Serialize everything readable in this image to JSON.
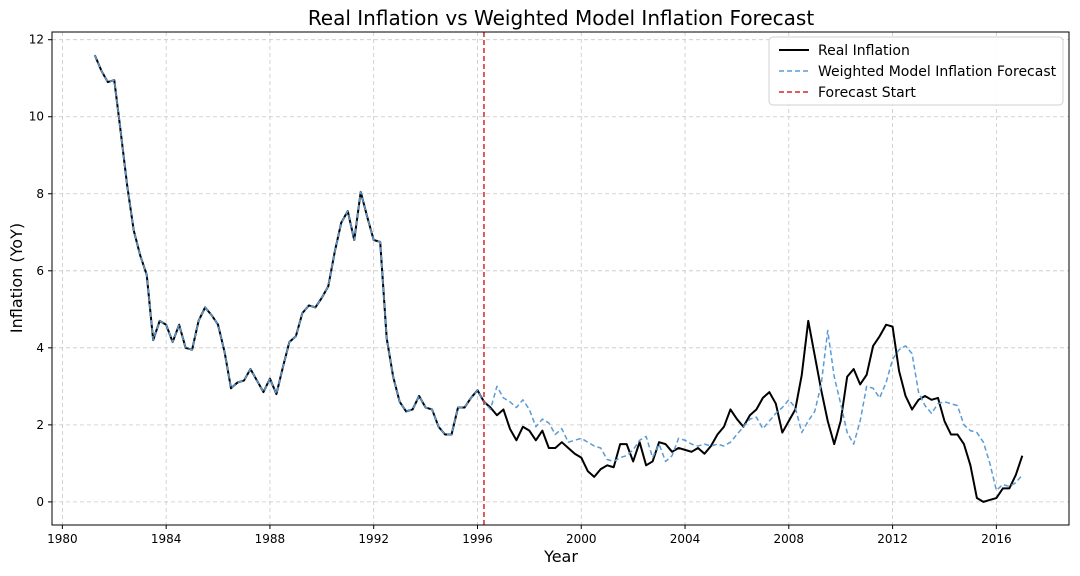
{
  "chart_data": {
    "type": "line",
    "title": "Real Inflation vs Weighted Model Inflation Forecast",
    "xlabel": "Year",
    "ylabel": "Inflation (YoY)",
    "xlim": [
      1979.6,
      2018.8
    ],
    "ylim": [
      -0.6,
      12.2
    ],
    "x_ticks": [
      1980,
      1984,
      1988,
      1992,
      1996,
      2000,
      2004,
      2008,
      2012,
      2016
    ],
    "y_ticks": [
      0,
      2,
      4,
      6,
      8,
      10,
      12
    ],
    "grid": true,
    "legend_position": "top-right",
    "forecast_start": {
      "label": "Forecast Start",
      "x": 1996.25,
      "color": "#d62728"
    },
    "series": [
      {
        "name": "Real Inflation",
        "color": "#000000",
        "style": "solid",
        "points": [
          [
            1981.25,
            11.6
          ],
          [
            1981.5,
            11.2
          ],
          [
            1981.75,
            10.9
          ],
          [
            1982.0,
            10.95
          ],
          [
            1982.25,
            9.6
          ],
          [
            1982.5,
            8.2
          ],
          [
            1982.75,
            7.05
          ],
          [
            1983.0,
            6.4
          ],
          [
            1983.25,
            5.9
          ],
          [
            1983.5,
            4.2
          ],
          [
            1983.75,
            4.7
          ],
          [
            1984.0,
            4.6
          ],
          [
            1984.25,
            4.15
          ],
          [
            1984.5,
            4.6
          ],
          [
            1984.75,
            4.0
          ],
          [
            1985.0,
            3.95
          ],
          [
            1985.25,
            4.7
          ],
          [
            1985.5,
            5.05
          ],
          [
            1985.75,
            4.85
          ],
          [
            1986.0,
            4.6
          ],
          [
            1986.25,
            3.9
          ],
          [
            1986.5,
            2.95
          ],
          [
            1986.75,
            3.1
          ],
          [
            1987.0,
            3.15
          ],
          [
            1987.25,
            3.45
          ],
          [
            1987.5,
            3.15
          ],
          [
            1987.75,
            2.85
          ],
          [
            1988.0,
            3.2
          ],
          [
            1988.25,
            2.8
          ],
          [
            1988.5,
            3.5
          ],
          [
            1988.75,
            4.15
          ],
          [
            1989.0,
            4.3
          ],
          [
            1989.25,
            4.9
          ],
          [
            1989.5,
            5.1
          ],
          [
            1989.75,
            5.05
          ],
          [
            1990.0,
            5.3
          ],
          [
            1990.25,
            5.6
          ],
          [
            1990.5,
            6.5
          ],
          [
            1990.75,
            7.25
          ],
          [
            1991.0,
            7.55
          ],
          [
            1991.25,
            6.8
          ],
          [
            1991.5,
            8.05
          ],
          [
            1991.75,
            7.4
          ],
          [
            1992.0,
            6.8
          ],
          [
            1992.25,
            6.75
          ],
          [
            1992.5,
            4.25
          ],
          [
            1992.75,
            3.25
          ],
          [
            1993.0,
            2.6
          ],
          [
            1993.25,
            2.35
          ],
          [
            1993.5,
            2.4
          ],
          [
            1993.75,
            2.75
          ],
          [
            1994.0,
            2.45
          ],
          [
            1994.25,
            2.4
          ],
          [
            1994.5,
            1.95
          ],
          [
            1994.75,
            1.75
          ],
          [
            1995.0,
            1.75
          ],
          [
            1995.25,
            2.45
          ],
          [
            1995.5,
            2.45
          ],
          [
            1995.75,
            2.7
          ],
          [
            1996.0,
            2.9
          ],
          [
            1996.25,
            2.6
          ],
          [
            1996.5,
            2.45
          ],
          [
            1996.75,
            2.25
          ],
          [
            1997.0,
            2.4
          ],
          [
            1997.25,
            1.9
          ],
          [
            1997.5,
            1.6
          ],
          [
            1997.75,
            1.95
          ],
          [
            1998.0,
            1.85
          ],
          [
            1998.25,
            1.6
          ],
          [
            1998.5,
            1.85
          ],
          [
            1998.75,
            1.4
          ],
          [
            1999.0,
            1.4
          ],
          [
            1999.25,
            1.55
          ],
          [
            1999.5,
            1.4
          ],
          [
            1999.75,
            1.25
          ],
          [
            2000.0,
            1.15
          ],
          [
            2000.25,
            0.8
          ],
          [
            2000.5,
            0.65
          ],
          [
            2000.75,
            0.85
          ],
          [
            2001.0,
            0.95
          ],
          [
            2001.25,
            0.9
          ],
          [
            2001.5,
            1.5
          ],
          [
            2001.75,
            1.5
          ],
          [
            2002.0,
            1.05
          ],
          [
            2002.25,
            1.55
          ],
          [
            2002.5,
            0.95
          ],
          [
            2002.75,
            1.05
          ],
          [
            2003.0,
            1.55
          ],
          [
            2003.25,
            1.5
          ],
          [
            2003.5,
            1.3
          ],
          [
            2003.75,
            1.4
          ],
          [
            2004.0,
            1.35
          ],
          [
            2004.25,
            1.3
          ],
          [
            2004.5,
            1.4
          ],
          [
            2004.75,
            1.25
          ],
          [
            2005.0,
            1.45
          ],
          [
            2005.25,
            1.75
          ],
          [
            2005.5,
            1.95
          ],
          [
            2005.75,
            2.4
          ],
          [
            2006.0,
            2.15
          ],
          [
            2006.25,
            1.95
          ],
          [
            2006.5,
            2.25
          ],
          [
            2006.75,
            2.4
          ],
          [
            2007.0,
            2.7
          ],
          [
            2007.25,
            2.85
          ],
          [
            2007.5,
            2.55
          ],
          [
            2007.75,
            1.8
          ],
          [
            2008.0,
            2.1
          ],
          [
            2008.25,
            2.4
          ],
          [
            2008.5,
            3.3
          ],
          [
            2008.75,
            4.7
          ],
          [
            2009.0,
            3.8
          ],
          [
            2009.25,
            2.9
          ],
          [
            2009.5,
            2.1
          ],
          [
            2009.75,
            1.5
          ],
          [
            2010.0,
            2.1
          ],
          [
            2010.25,
            3.25
          ],
          [
            2010.5,
            3.45
          ],
          [
            2010.75,
            3.05
          ],
          [
            2011.0,
            3.3
          ],
          [
            2011.25,
            4.05
          ],
          [
            2011.5,
            4.3
          ],
          [
            2011.75,
            4.6
          ],
          [
            2012.0,
            4.55
          ],
          [
            2012.25,
            3.4
          ],
          [
            2012.5,
            2.75
          ],
          [
            2012.75,
            2.4
          ],
          [
            2013.0,
            2.65
          ],
          [
            2013.25,
            2.75
          ],
          [
            2013.5,
            2.65
          ],
          [
            2013.75,
            2.7
          ],
          [
            2014.0,
            2.1
          ],
          [
            2014.25,
            1.75
          ],
          [
            2014.5,
            1.75
          ],
          [
            2014.75,
            1.5
          ],
          [
            2015.0,
            0.95
          ],
          [
            2015.25,
            0.1
          ],
          [
            2015.5,
            0.0
          ],
          [
            2015.75,
            0.05
          ],
          [
            2016.0,
            0.1
          ],
          [
            2016.25,
            0.35
          ],
          [
            2016.5,
            0.35
          ],
          [
            2016.75,
            0.7
          ],
          [
            2017.0,
            1.2
          ]
        ]
      },
      {
        "name": "Weighted Model Inflation Forecast",
        "color": "#5b9bd5",
        "style": "dashed",
        "points": [
          [
            1981.25,
            11.6
          ],
          [
            1981.5,
            11.2
          ],
          [
            1981.75,
            10.9
          ],
          [
            1982.0,
            10.95
          ],
          [
            1982.25,
            9.6
          ],
          [
            1982.5,
            8.2
          ],
          [
            1982.75,
            7.05
          ],
          [
            1983.0,
            6.4
          ],
          [
            1983.25,
            5.9
          ],
          [
            1983.5,
            4.2
          ],
          [
            1983.75,
            4.7
          ],
          [
            1984.0,
            4.6
          ],
          [
            1984.25,
            4.15
          ],
          [
            1984.5,
            4.6
          ],
          [
            1984.75,
            4.0
          ],
          [
            1985.0,
            3.95
          ],
          [
            1985.25,
            4.7
          ],
          [
            1985.5,
            5.05
          ],
          [
            1985.75,
            4.85
          ],
          [
            1986.0,
            4.6
          ],
          [
            1986.25,
            3.9
          ],
          [
            1986.5,
            2.95
          ],
          [
            1986.75,
            3.1
          ],
          [
            1987.0,
            3.15
          ],
          [
            1987.25,
            3.45
          ],
          [
            1987.5,
            3.15
          ],
          [
            1987.75,
            2.85
          ],
          [
            1988.0,
            3.2
          ],
          [
            1988.25,
            2.8
          ],
          [
            1988.5,
            3.5
          ],
          [
            1988.75,
            4.15
          ],
          [
            1989.0,
            4.3
          ],
          [
            1989.25,
            4.9
          ],
          [
            1989.5,
            5.1
          ],
          [
            1989.75,
            5.05
          ],
          [
            1990.0,
            5.3
          ],
          [
            1990.25,
            5.6
          ],
          [
            1990.5,
            6.5
          ],
          [
            1990.75,
            7.25
          ],
          [
            1991.0,
            7.55
          ],
          [
            1991.25,
            6.8
          ],
          [
            1991.5,
            8.05
          ],
          [
            1991.75,
            7.4
          ],
          [
            1992.0,
            6.8
          ],
          [
            1992.25,
            6.75
          ],
          [
            1992.5,
            4.25
          ],
          [
            1992.75,
            3.25
          ],
          [
            1993.0,
            2.6
          ],
          [
            1993.25,
            2.35
          ],
          [
            1993.5,
            2.4
          ],
          [
            1993.75,
            2.75
          ],
          [
            1994.0,
            2.45
          ],
          [
            1994.25,
            2.4
          ],
          [
            1994.5,
            1.95
          ],
          [
            1994.75,
            1.75
          ],
          [
            1995.0,
            1.75
          ],
          [
            1995.25,
            2.45
          ],
          [
            1995.5,
            2.45
          ],
          [
            1995.75,
            2.7
          ],
          [
            1996.0,
            2.9
          ],
          [
            1996.25,
            2.6
          ],
          [
            1996.5,
            2.4
          ],
          [
            1996.75,
            3.0
          ],
          [
            1997.0,
            2.7
          ],
          [
            1997.25,
            2.6
          ],
          [
            1997.5,
            2.45
          ],
          [
            1997.75,
            2.65
          ],
          [
            1998.0,
            2.4
          ],
          [
            1998.25,
            1.95
          ],
          [
            1998.5,
            2.15
          ],
          [
            1998.75,
            2.05
          ],
          [
            1999.0,
            1.75
          ],
          [
            1999.25,
            1.9
          ],
          [
            1999.5,
            1.55
          ],
          [
            1999.75,
            1.6
          ],
          [
            2000.0,
            1.65
          ],
          [
            2000.25,
            1.55
          ],
          [
            2000.5,
            1.45
          ],
          [
            2000.75,
            1.4
          ],
          [
            2001.0,
            1.1
          ],
          [
            2001.25,
            1.05
          ],
          [
            2001.5,
            1.15
          ],
          [
            2001.75,
            1.2
          ],
          [
            2002.0,
            1.35
          ],
          [
            2002.25,
            1.6
          ],
          [
            2002.5,
            1.7
          ],
          [
            2002.75,
            1.15
          ],
          [
            2003.0,
            1.5
          ],
          [
            2003.25,
            1.05
          ],
          [
            2003.5,
            1.2
          ],
          [
            2003.75,
            1.65
          ],
          [
            2004.0,
            1.6
          ],
          [
            2004.25,
            1.5
          ],
          [
            2004.5,
            1.45
          ],
          [
            2004.75,
            1.5
          ],
          [
            2005.0,
            1.45
          ],
          [
            2005.25,
            1.5
          ],
          [
            2005.5,
            1.45
          ],
          [
            2005.75,
            1.55
          ],
          [
            2006.0,
            1.75
          ],
          [
            2006.25,
            1.95
          ],
          [
            2006.5,
            2.15
          ],
          [
            2006.75,
            2.2
          ],
          [
            2007.0,
            1.9
          ],
          [
            2007.25,
            2.1
          ],
          [
            2007.5,
            2.3
          ],
          [
            2007.75,
            2.45
          ],
          [
            2008.0,
            2.65
          ],
          [
            2008.25,
            2.45
          ],
          [
            2008.5,
            1.8
          ],
          [
            2008.75,
            2.1
          ],
          [
            2009.0,
            2.35
          ],
          [
            2009.25,
            3.05
          ],
          [
            2009.5,
            4.45
          ],
          [
            2009.75,
            3.25
          ],
          [
            2010.0,
            2.55
          ],
          [
            2010.25,
            1.8
          ],
          [
            2010.5,
            1.5
          ],
          [
            2010.75,
            2.1
          ],
          [
            2011.0,
            3.0
          ],
          [
            2011.25,
            2.95
          ],
          [
            2011.5,
            2.7
          ],
          [
            2011.75,
            3.1
          ],
          [
            2012.0,
            3.7
          ],
          [
            2012.25,
            3.95
          ],
          [
            2012.5,
            4.05
          ],
          [
            2012.75,
            3.85
          ],
          [
            2013.0,
            2.85
          ],
          [
            2013.25,
            2.5
          ],
          [
            2013.5,
            2.3
          ],
          [
            2013.75,
            2.55
          ],
          [
            2014.0,
            2.6
          ],
          [
            2014.25,
            2.55
          ],
          [
            2014.5,
            2.5
          ],
          [
            2014.75,
            2.0
          ],
          [
            2015.0,
            1.85
          ],
          [
            2015.25,
            1.8
          ],
          [
            2015.5,
            1.55
          ],
          [
            2015.75,
            1.0
          ],
          [
            2016.0,
            0.3
          ],
          [
            2016.25,
            0.45
          ],
          [
            2016.5,
            0.4
          ],
          [
            2016.75,
            0.5
          ],
          [
            2017.0,
            0.7
          ]
        ]
      }
    ]
  }
}
